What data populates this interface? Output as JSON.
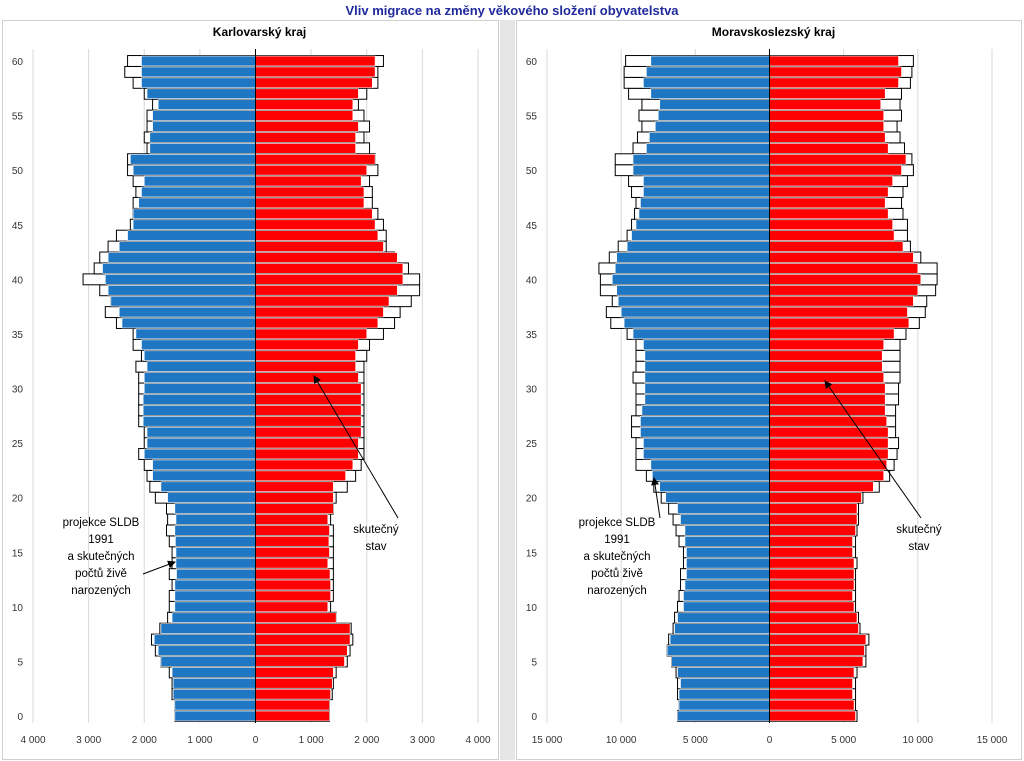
{
  "title": "Vliv migrace na změny věkového složení obyvatelstva",
  "colors": {
    "male": "#1f77c4",
    "female": "#ff0000",
    "projection_fill": "#ffffff",
    "title": "#1f2a9c"
  },
  "chart_data": [
    {
      "type": "bar",
      "orientation": "horizontal-population-pyramid",
      "title": "Karlovarský kraj",
      "ages": [
        0,
        1,
        2,
        3,
        4,
        5,
        6,
        7,
        8,
        9,
        10,
        11,
        12,
        13,
        14,
        15,
        16,
        17,
        18,
        19,
        20,
        21,
        22,
        23,
        24,
        25,
        26,
        27,
        28,
        29,
        30,
        31,
        32,
        33,
        34,
        35,
        36,
        37,
        38,
        39,
        40,
        41,
        42,
        43,
        44,
        45,
        46,
        47,
        48,
        49,
        50,
        51,
        52,
        53,
        54,
        55,
        56,
        57,
        58,
        59,
        60
      ],
      "y_ticks": [
        0,
        5,
        10,
        15,
        20,
        25,
        30,
        35,
        40,
        45,
        50,
        55,
        60
      ],
      "x_ticks": [
        -4000,
        -3000,
        -2000,
        -1000,
        0,
        1000,
        2000,
        3000,
        4000
      ],
      "x_tick_labels": [
        "4 000",
        "3 000",
        "2 000",
        "1 000",
        "0",
        "1 000",
        "2 000",
        "3 000",
        "4 000"
      ],
      "xlim": [
        -4000,
        4000
      ],
      "series": [
        {
          "role": "actual-male",
          "values": [
            1450,
            1450,
            1480,
            1480,
            1500,
            1700,
            1750,
            1820,
            1700,
            1500,
            1450,
            1450,
            1450,
            1420,
            1430,
            1430,
            1440,
            1450,
            1430,
            1450,
            1580,
            1700,
            1850,
            1850,
            2000,
            1950,
            1950,
            2020,
            2020,
            2020,
            2000,
            2000,
            1950,
            2000,
            2050,
            2150,
            2400,
            2450,
            2600,
            2650,
            2700,
            2750,
            2650,
            2450,
            2300,
            2200,
            2200,
            2100,
            2050,
            2000,
            2200,
            2250,
            1900,
            1900,
            1850,
            1850,
            1750,
            1950,
            2050,
            2050,
            2050
          ]
        },
        {
          "role": "actual-female",
          "values": [
            1330,
            1330,
            1350,
            1380,
            1400,
            1600,
            1650,
            1700,
            1700,
            1450,
            1300,
            1350,
            1350,
            1340,
            1300,
            1330,
            1320,
            1330,
            1300,
            1400,
            1400,
            1400,
            1620,
            1750,
            1850,
            1850,
            1900,
            1900,
            1900,
            1900,
            1900,
            1850,
            1800,
            1800,
            1850,
            2000,
            2200,
            2300,
            2400,
            2550,
            2650,
            2650,
            2550,
            2300,
            2200,
            2150,
            2100,
            1950,
            1950,
            1900,
            2000,
            2150,
            1800,
            1800,
            1850,
            1750,
            1750,
            1850,
            2100,
            2150,
            2150
          ]
        },
        {
          "role": "projection-male",
          "values": [
            1450,
            1450,
            1500,
            1500,
            1550,
            1700,
            1800,
            1870,
            1720,
            1580,
            1550,
            1550,
            1500,
            1550,
            1500,
            1500,
            1550,
            1600,
            1580,
            1600,
            1800,
            1900,
            1950,
            2000,
            2100,
            2000,
            2000,
            2100,
            2100,
            2100,
            2100,
            2100,
            2150,
            2050,
            2200,
            2200,
            2500,
            2700,
            2600,
            2800,
            3100,
            2900,
            2800,
            2650,
            2500,
            2250,
            2200,
            2200,
            2150,
            2200,
            2300,
            2300,
            1950,
            2000,
            1950,
            1950,
            1850,
            2000,
            2200,
            2350,
            2300
          ]
        },
        {
          "role": "projection-female",
          "values": [
            1330,
            1330,
            1380,
            1400,
            1450,
            1650,
            1700,
            1750,
            1720,
            1450,
            1350,
            1400,
            1400,
            1400,
            1400,
            1400,
            1400,
            1400,
            1350,
            1400,
            1450,
            1650,
            1800,
            1900,
            1950,
            1950,
            1950,
            1950,
            1950,
            1950,
            1950,
            1950,
            1950,
            2000,
            2050,
            2300,
            2500,
            2600,
            2800,
            2950,
            2950,
            2750,
            2500,
            2350,
            2350,
            2300,
            2200,
            2100,
            2100,
            2050,
            2200,
            2150,
            2050,
            1950,
            2050,
            1950,
            1850,
            2000,
            2200,
            2200,
            2300
          ]
        }
      ],
      "annotations": [
        {
          "lines": [
            "projekce SLDB",
            "1991",
            "a skutečných",
            "počtů živě",
            "narozených"
          ]
        },
        {
          "lines": [
            "skutečný",
            "stav"
          ]
        }
      ]
    },
    {
      "type": "bar",
      "orientation": "horizontal-population-pyramid",
      "title": "Moravskoslezský kraj",
      "ages": [
        0,
        1,
        2,
        3,
        4,
        5,
        6,
        7,
        8,
        9,
        10,
        11,
        12,
        13,
        14,
        15,
        16,
        17,
        18,
        19,
        20,
        21,
        22,
        23,
        24,
        25,
        26,
        27,
        28,
        29,
        30,
        31,
        32,
        33,
        34,
        35,
        36,
        37,
        38,
        39,
        40,
        41,
        42,
        43,
        44,
        45,
        46,
        47,
        48,
        49,
        50,
        51,
        52,
        53,
        54,
        55,
        56,
        57,
        58,
        59,
        60
      ],
      "y_ticks": [
        0,
        5,
        10,
        15,
        20,
        25,
        30,
        35,
        40,
        45,
        50,
        55,
        60
      ],
      "x_ticks": [
        -15000,
        -10000,
        -5000,
        0,
        5000,
        10000,
        15000
      ],
      "x_tick_labels": [
        "15 000",
        "10 000",
        "5 000",
        "0",
        "5 000",
        "10 000",
        "15 000"
      ],
      "xlim": [
        -15000,
        15000
      ],
      "series": [
        {
          "role": "actual-male",
          "values": [
            6200,
            6100,
            6100,
            6000,
            6200,
            6600,
            6900,
            6700,
            6400,
            6200,
            5800,
            5800,
            5700,
            5600,
            5600,
            5600,
            5700,
            5700,
            6000,
            6200,
            7000,
            7400,
            7900,
            8000,
            8500,
            8500,
            8700,
            8700,
            8600,
            8400,
            8400,
            8400,
            8400,
            8400,
            8500,
            9200,
            9800,
            10000,
            10200,
            10300,
            10600,
            10400,
            10300,
            9600,
            9300,
            9000,
            8800,
            8700,
            8500,
            8500,
            9200,
            9200,
            8300,
            8100,
            7700,
            7500,
            7400,
            8000,
            8500,
            8300,
            8000
          ]
        },
        {
          "role": "actual-female",
          "values": [
            5800,
            5700,
            5600,
            5600,
            5700,
            6300,
            6400,
            6500,
            6000,
            5900,
            5700,
            5600,
            5700,
            5700,
            5700,
            5600,
            5600,
            5800,
            5900,
            5900,
            6200,
            7000,
            7700,
            7900,
            8000,
            8000,
            8000,
            7900,
            7800,
            7800,
            7800,
            7700,
            7600,
            7600,
            7700,
            8400,
            9400,
            9300,
            9700,
            10000,
            10200,
            10000,
            9700,
            9000,
            8400,
            8300,
            8000,
            7800,
            8000,
            8300,
            8900,
            9200,
            8000,
            7800,
            7700,
            7700,
            7500,
            7800,
            8700,
            8900,
            8700
          ]
        },
        {
          "role": "projection-male",
          "values": [
            6200,
            6100,
            6200,
            6200,
            6300,
            6600,
            6900,
            6800,
            6500,
            6400,
            6200,
            6100,
            6000,
            6000,
            5800,
            5800,
            6100,
            6300,
            6500,
            6800,
            7300,
            7800,
            8300,
            9000,
            9000,
            9000,
            9300,
            9300,
            9000,
            9000,
            9000,
            9200,
            9000,
            9000,
            9000,
            9600,
            10700,
            11000,
            10600,
            11400,
            11400,
            11500,
            10800,
            10200,
            9600,
            9300,
            9100,
            9000,
            9300,
            9500,
            10400,
            10400,
            9200,
            8900,
            8600,
            8800,
            8600,
            9500,
            9800,
            9800,
            9700
          ]
        },
        {
          "role": "projection-female",
          "values": [
            5900,
            5800,
            5800,
            5800,
            5900,
            6500,
            6500,
            6700,
            6100,
            6000,
            5800,
            5800,
            5800,
            5800,
            5900,
            5800,
            5800,
            5900,
            6000,
            6000,
            6300,
            7400,
            8100,
            8400,
            8600,
            8700,
            8500,
            8500,
            8500,
            8700,
            8700,
            8800,
            8800,
            8800,
            8800,
            9200,
            10100,
            10500,
            10600,
            11200,
            11300,
            11300,
            10200,
            9500,
            9300,
            9300,
            9000,
            8900,
            9000,
            9300,
            9700,
            9600,
            9100,
            8800,
            8600,
            8900,
            8800,
            8900,
            9500,
            9600,
            9700
          ]
        }
      ],
      "annotations": [
        {
          "lines": [
            "projekce SLDB",
            "1991",
            "a skutečných",
            "počtů živě",
            "narozených"
          ]
        },
        {
          "lines": [
            "skutečný",
            "stav"
          ]
        }
      ]
    }
  ]
}
